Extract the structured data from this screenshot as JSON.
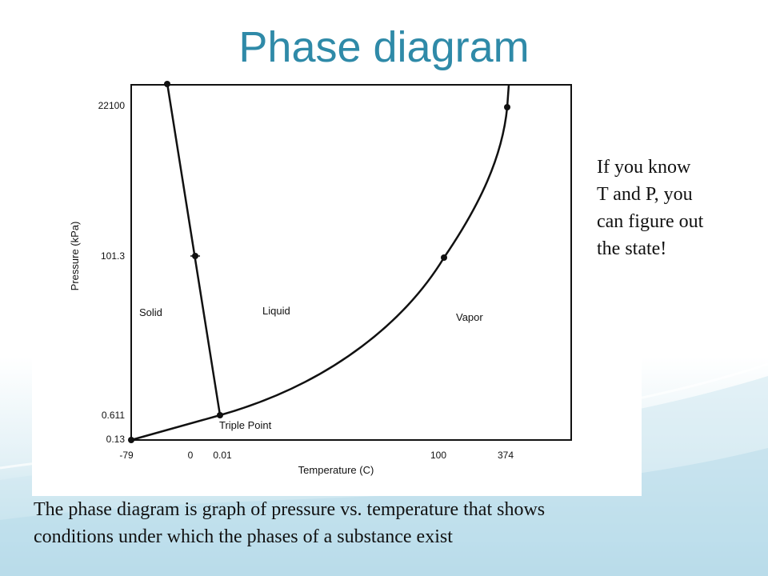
{
  "slide": {
    "title": "Phase diagram",
    "side_note": [
      "If you know",
      "T and P, you",
      "can figure out",
      "the state!"
    ],
    "caption": [
      "The phase diagram is graph of pressure vs. temperature that shows",
      "conditions under which the phases of a substance exist"
    ]
  },
  "diagram": {
    "y_axis_label": "Pressure (kPa)",
    "x_axis_label": "Temperature (C)",
    "y_ticks": [
      "22100",
      "101.3",
      "0.611",
      "0.13"
    ],
    "x_ticks": [
      "-79",
      "0",
      "0.01",
      "100",
      "374"
    ],
    "regions": {
      "solid": "Solid",
      "liquid": "Liquid",
      "vapor": "Vapor"
    },
    "triple_point_label": "Triple Point",
    "points": [
      {
        "name": "sublimation-start",
        "temperature": "-79",
        "pressure": "0.13"
      },
      {
        "name": "triple-point",
        "temperature": "0.01",
        "pressure": "0.611"
      },
      {
        "name": "normal-melting-point",
        "temperature": "0",
        "pressure": "101.3"
      },
      {
        "name": "normal-boiling-point",
        "temperature": "100",
        "pressure": "101.3"
      },
      {
        "name": "critical-point",
        "temperature": "374",
        "pressure": "22100"
      }
    ],
    "colors": {
      "title": "#2f8aa8",
      "line": "#111111"
    }
  }
}
